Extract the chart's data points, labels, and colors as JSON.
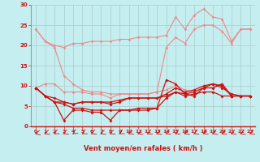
{
  "xlabel": "Vent moyen/en rafales ( km/h )",
  "background_color": "#c5eef0",
  "grid_color": "#aacccc",
  "xlim": [
    -0.5,
    23.5
  ],
  "ylim": [
    0,
    30
  ],
  "yticks": [
    0,
    5,
    10,
    15,
    20,
    25,
    30
  ],
  "xticks": [
    0,
    1,
    2,
    3,
    4,
    5,
    6,
    7,
    8,
    9,
    10,
    11,
    12,
    13,
    14,
    15,
    16,
    17,
    18,
    19,
    20,
    21,
    22,
    23
  ],
  "series_light": [
    [
      24.0,
      21.0,
      20.0,
      19.5,
      20.5,
      20.5,
      21.0,
      21.0,
      21.0,
      21.5,
      21.5,
      22.0,
      22.0,
      22.0,
      22.5,
      27.0,
      24.0,
      27.5,
      29.0,
      27.0,
      26.5,
      21.0,
      24.0,
      24.0
    ],
    [
      24.0,
      21.0,
      19.5,
      12.5,
      10.5,
      9.0,
      8.5,
      8.5,
      8.0,
      8.0,
      8.0,
      8.0,
      8.0,
      8.5,
      19.5,
      22.0,
      20.5,
      24.0,
      25.0,
      25.0,
      23.5,
      20.5,
      24.0,
      24.0
    ],
    [
      9.5,
      10.5,
      10.5,
      8.5,
      8.5,
      8.5,
      8.0,
      8.0,
      7.0,
      8.0,
      8.0,
      8.0,
      8.0,
      8.5,
      9.0,
      10.0,
      9.0,
      8.5,
      9.5,
      9.5,
      10.5,
      7.5,
      7.5,
      7.5
    ]
  ],
  "series_dark": [
    [
      9.5,
      7.5,
      7.0,
      6.0,
      5.5,
      6.0,
      6.0,
      6.0,
      6.0,
      6.5,
      7.0,
      7.0,
      7.0,
      7.0,
      7.5,
      8.5,
      8.0,
      8.5,
      9.5,
      10.5,
      9.5,
      8.0,
      7.5,
      7.5
    ],
    [
      9.5,
      7.5,
      6.0,
      5.5,
      4.5,
      4.5,
      4.0,
      4.0,
      4.0,
      4.0,
      4.0,
      4.5,
      4.5,
      4.5,
      7.0,
      8.5,
      7.5,
      8.0,
      8.5,
      8.5,
      7.5,
      7.5,
      7.5,
      7.5
    ],
    [
      9.5,
      7.5,
      6.0,
      1.5,
      4.0,
      4.0,
      3.5,
      3.5,
      1.5,
      4.0,
      4.0,
      4.0,
      4.0,
      4.5,
      11.5,
      10.5,
      8.0,
      7.5,
      9.5,
      9.5,
      10.5,
      7.5,
      7.5,
      7.5
    ],
    [
      9.5,
      7.5,
      6.0,
      6.0,
      5.5,
      6.0,
      6.0,
      6.0,
      5.5,
      6.0,
      7.0,
      7.0,
      7.0,
      7.0,
      8.0,
      9.5,
      8.5,
      9.0,
      10.0,
      10.5,
      10.0,
      7.5,
      7.5,
      7.5
    ]
  ],
  "light_color": "#f08888",
  "dark_color": "#cc1111",
  "arrow_angles": [
    200,
    210,
    220,
    215,
    225,
    220,
    215,
    210,
    215,
    220,
    215,
    210,
    215,
    210,
    215,
    215,
    210,
    215,
    215,
    210,
    210,
    210,
    210,
    210
  ]
}
